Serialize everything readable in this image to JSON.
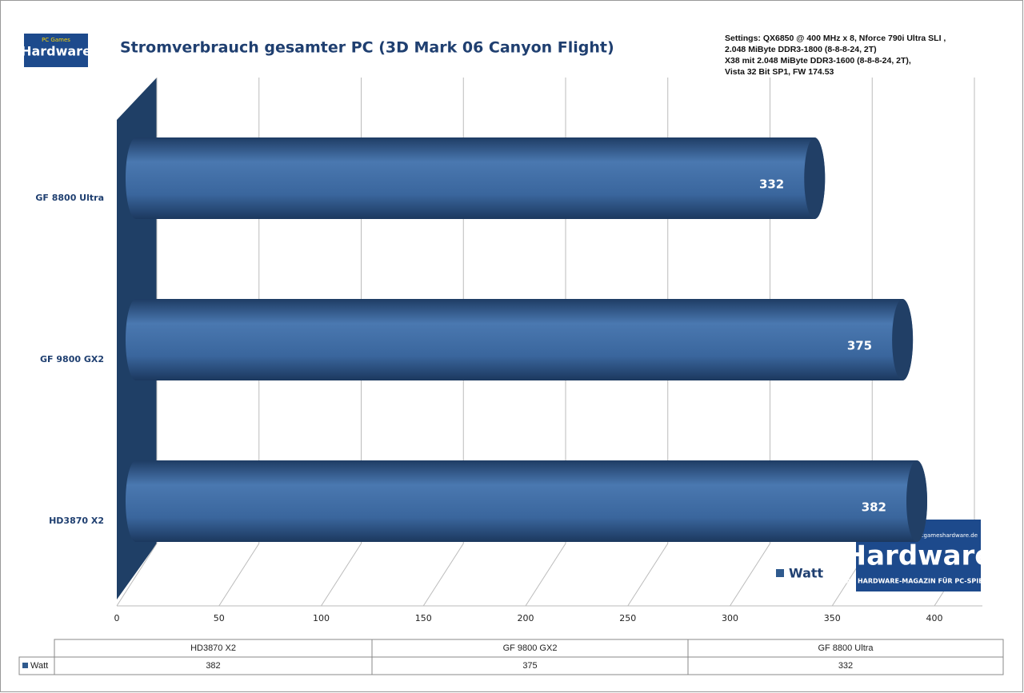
{
  "chart_data": {
    "type": "bar3d",
    "title": "Stromverbrauch gesamter PC (3D Mark 06 Canyon Flight)",
    "settings": [
      "Settings: QX6850 @ 400 MHz x 8, Nforce 790i Ultra SLI ,",
      " 2.048 MiByte DDR3-1800 (8-8-8-24, 2T)",
      "X38 mit 2.048 MiByte DDR3-1600 (8-8-8-24, 2T),",
      "Vista 32 Bit SP1, FW 174.53"
    ],
    "categories": [
      "HD3870  X2",
      "GF 9800  GX2",
      "GF 8800  Ultra"
    ],
    "table_columns": [
      "HD3870 X2",
      "GF 9800 GX2",
      "GF 8800 Ultra"
    ],
    "series": [
      {
        "name": "Watt",
        "color": "#2f5a8e",
        "values": [
          382,
          375,
          332
        ]
      }
    ],
    "xlim": [
      0,
      400
    ],
    "xticks": [
      0,
      50,
      100,
      150,
      200,
      250,
      300,
      350,
      400
    ],
    "grid": true,
    "logo": {
      "brand": "Hardware",
      "top": "PC Games",
      "url": "www.pcgameshardware.de",
      "tagline": "DAS HARDWARE-MAGAZIN FÜR PC-SPIELER"
    }
  }
}
